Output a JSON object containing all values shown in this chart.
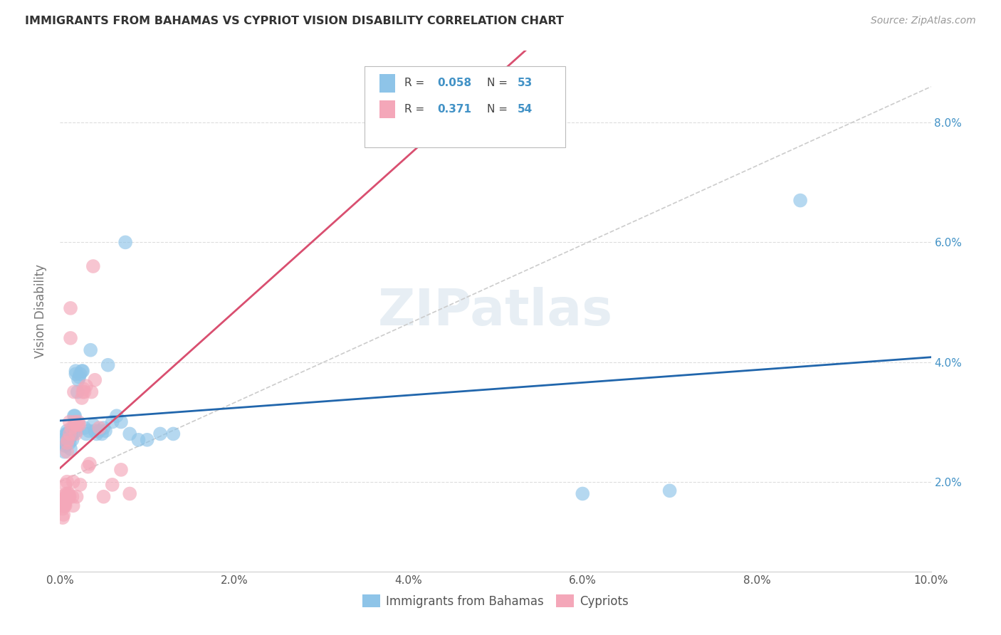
{
  "title": "IMMIGRANTS FROM BAHAMAS VS CYPRIOT VISION DISABILITY CORRELATION CHART",
  "source": "Source: ZipAtlas.com",
  "ylabel_label": "Vision Disability",
  "legend_label1": "Immigrants from Bahamas",
  "legend_label2": "Cypriots",
  "R1": "0.058",
  "N1": "53",
  "R2": "0.371",
  "N2": "54",
  "color_blue": "#8ec4e8",
  "color_pink": "#f4a7b9",
  "color_blue_text": "#4292c6",
  "color_line_blue": "#2166ac",
  "color_line_pink": "#d94f70",
  "color_line_gray": "#cccccc",
  "blue_x": [
    0.0003,
    0.0004,
    0.0005,
    0.0006,
    0.0007,
    0.0008,
    0.0008,
    0.0009,
    0.0009,
    0.001,
    0.001,
    0.0011,
    0.0012,
    0.0012,
    0.0013,
    0.0014,
    0.0015,
    0.0015,
    0.0016,
    0.0017,
    0.0018,
    0.0018,
    0.0019,
    0.002,
    0.0021,
    0.0022,
    0.0023,
    0.0025,
    0.0026,
    0.0028,
    0.003,
    0.0033,
    0.0035,
    0.0038,
    0.004,
    0.0042,
    0.0045,
    0.0048,
    0.005,
    0.0052,
    0.0055,
    0.006,
    0.0065,
    0.007,
    0.0075,
    0.008,
    0.009,
    0.01,
    0.0115,
    0.013,
    0.06,
    0.07,
    0.085
  ],
  "blue_y": [
    0.027,
    0.0265,
    0.025,
    0.026,
    0.028,
    0.0285,
    0.028,
    0.0275,
    0.028,
    0.027,
    0.0275,
    0.0265,
    0.0255,
    0.0275,
    0.028,
    0.027,
    0.028,
    0.029,
    0.031,
    0.031,
    0.038,
    0.0385,
    0.0285,
    0.035,
    0.037,
    0.0375,
    0.038,
    0.0385,
    0.0385,
    0.029,
    0.028,
    0.0285,
    0.042,
    0.0295,
    0.0285,
    0.028,
    0.0285,
    0.028,
    0.029,
    0.0285,
    0.0395,
    0.03,
    0.031,
    0.03,
    0.06,
    0.028,
    0.027,
    0.027,
    0.028,
    0.028,
    0.018,
    0.0185,
    0.067
  ],
  "pink_x": [
    0.0002,
    0.0003,
    0.0003,
    0.0004,
    0.0004,
    0.0005,
    0.0005,
    0.0006,
    0.0006,
    0.0006,
    0.0007,
    0.0007,
    0.0007,
    0.0008,
    0.0008,
    0.0008,
    0.0009,
    0.0009,
    0.001,
    0.001,
    0.001,
    0.0011,
    0.0011,
    0.0011,
    0.0012,
    0.0012,
    0.0013,
    0.0014,
    0.0015,
    0.0015,
    0.0016,
    0.0017,
    0.0018,
    0.0018,
    0.0019,
    0.002,
    0.0021,
    0.0022,
    0.0023,
    0.0025,
    0.0026,
    0.0027,
    0.0028,
    0.003,
    0.0032,
    0.0034,
    0.0036,
    0.0038,
    0.004,
    0.0045,
    0.005,
    0.006,
    0.007,
    0.008
  ],
  "pink_y": [
    0.0175,
    0.014,
    0.0155,
    0.0145,
    0.016,
    0.017,
    0.016,
    0.0195,
    0.0165,
    0.016,
    0.0175,
    0.018,
    0.0175,
    0.025,
    0.0265,
    0.02,
    0.018,
    0.027,
    0.0175,
    0.0175,
    0.018,
    0.028,
    0.03,
    0.0175,
    0.044,
    0.049,
    0.029,
    0.0175,
    0.02,
    0.016,
    0.035,
    0.03,
    0.0295,
    0.028,
    0.0175,
    0.0295,
    0.03,
    0.0295,
    0.0195,
    0.034,
    0.035,
    0.0355,
    0.035,
    0.036,
    0.0225,
    0.023,
    0.035,
    0.056,
    0.037,
    0.029,
    0.0175,
    0.0195,
    0.022,
    0.018
  ]
}
